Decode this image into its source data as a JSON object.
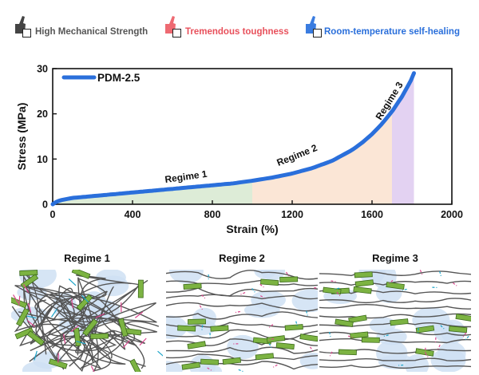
{
  "legend": {
    "items": [
      {
        "label": "High Mechanical Strength",
        "color": "#555555",
        "icon": "thumb-dark-icon"
      },
      {
        "label": "Tremendous toughness",
        "color": "#e8505b",
        "icon": "thumb-red-icon"
      },
      {
        "label": "Room-temperature self-healing",
        "color": "#2a6fdb",
        "icon": "thumb-blue-icon"
      }
    ]
  },
  "chart_data": {
    "type": "line",
    "xlabel": "Strain (%)",
    "ylabel": "Stress (MPa)",
    "xlim": [
      0,
      2000
    ],
    "ylim": [
      0,
      30
    ],
    "xticks": [
      0,
      400,
      800,
      1200,
      1600,
      2000
    ],
    "yticks": [
      0,
      10,
      20,
      30
    ],
    "legend_position": "top-left",
    "series": [
      {
        "name": "PDM-2.5",
        "color": "#2a6fdb",
        "x": [
          0,
          20,
          50,
          100,
          200,
          300,
          400,
          500,
          600,
          700,
          800,
          900,
          1000,
          1100,
          1200,
          1300,
          1400,
          1500,
          1550,
          1600,
          1650,
          1700,
          1750,
          1800,
          1810
        ],
        "y": [
          0,
          0.6,
          1.0,
          1.4,
          1.8,
          2.2,
          2.6,
          3.0,
          3.4,
          3.8,
          4.2,
          4.6,
          5.2,
          5.9,
          6.8,
          8.0,
          9.6,
          12.0,
          13.6,
          15.5,
          17.8,
          20.5,
          23.8,
          27.8,
          29.0
        ]
      }
    ],
    "regions": [
      {
        "label": "Regime 1",
        "x_start": 0,
        "x_end": 1000,
        "color": "#d9ead3",
        "label_x": 670,
        "label_y": 5.4,
        "label_angle": -8
      },
      {
        "label": "Regime 2",
        "x_start": 1000,
        "x_end": 1700,
        "color": "#fbe3d2",
        "label_x": 1230,
        "label_y": 10.2,
        "label_angle": -22
      },
      {
        "label": "Regime 3",
        "x_start": 1700,
        "x_end": 1810,
        "color": "#e0cdf1",
        "label_x": 1700,
        "label_y": 22.5,
        "label_angle": -58
      }
    ]
  },
  "panels": [
    {
      "title": "Regime 1"
    },
    {
      "title": "Regime 2"
    },
    {
      "title": "Regime 3"
    }
  ]
}
